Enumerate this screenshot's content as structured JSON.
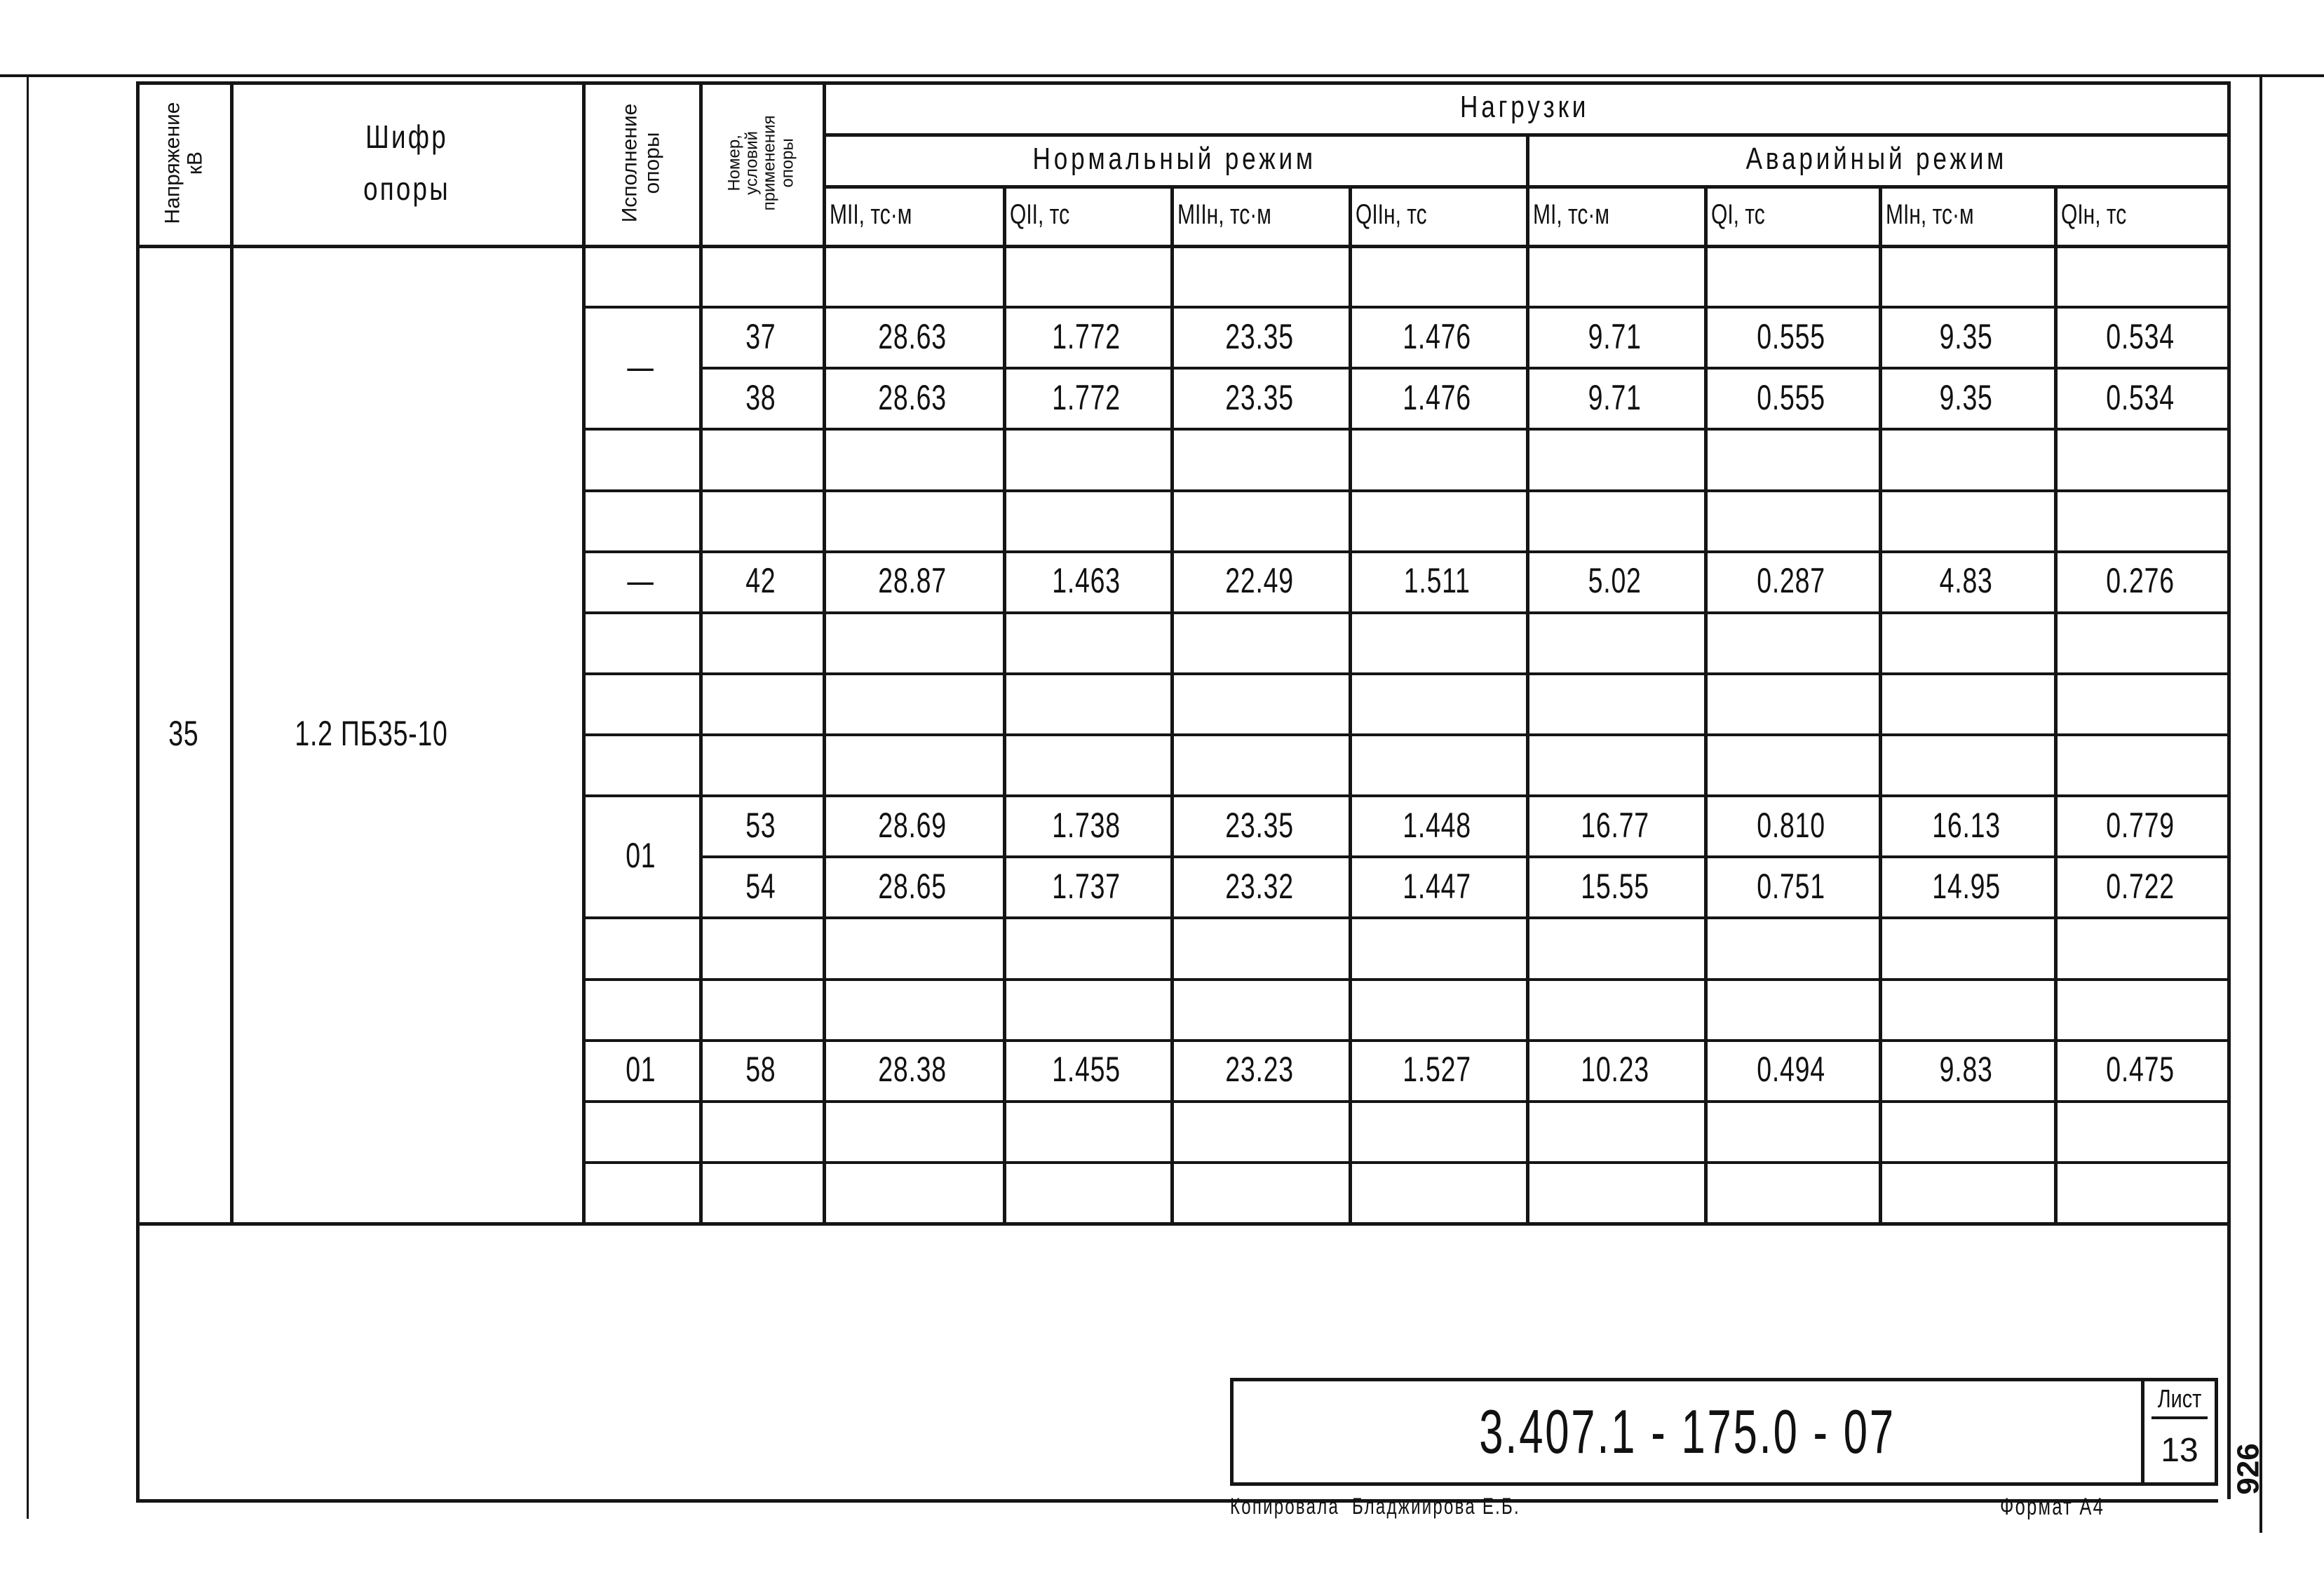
{
  "header": {
    "voltage": "Напряжение кВ",
    "code": "Шифр опоры",
    "execution": "Исполнение опоры",
    "condition_number": "Номер, условий применения опоры",
    "loads": "Нагрузки",
    "normal_mode": "Нормальный режим",
    "emergency_mode": "Аварийный режим",
    "columns": [
      "MII, тс·м",
      "QII, тс",
      "MIIн, тс·м",
      "QIIн, тс",
      "MI, тс·м",
      "QI, тс",
      "MIн, тс·м",
      "QIн, тс"
    ]
  },
  "voltage_value": "35",
  "code_value": "1.2 ПБ35-10",
  "rows": [
    {
      "execution": "",
      "number": "",
      "values": [
        "",
        "",
        "",
        "",
        "",
        "",
        "",
        ""
      ]
    },
    {
      "execution": "—",
      "number": "37",
      "values": [
        "28.63",
        "1.772",
        "23.35",
        "1.476",
        "9.71",
        "0.555",
        "9.35",
        "0.534"
      ]
    },
    {
      "execution": "—",
      "number": "38",
      "values": [
        "28.63",
        "1.772",
        "23.35",
        "1.476",
        "9.71",
        "0.555",
        "9.35",
        "0.534"
      ]
    },
    {
      "execution": "",
      "number": "",
      "values": [
        "",
        "",
        "",
        "",
        "",
        "",
        "",
        ""
      ]
    },
    {
      "execution": "",
      "number": "",
      "values": [
        "",
        "",
        "",
        "",
        "",
        "",
        "",
        ""
      ]
    },
    {
      "execution": "—",
      "number": "42",
      "values": [
        "28.87",
        "1.463",
        "22.49",
        "1.511",
        "5.02",
        "0.287",
        "4.83",
        "0.276"
      ]
    },
    {
      "execution": "",
      "number": "",
      "values": [
        "",
        "",
        "",
        "",
        "",
        "",
        "",
        ""
      ]
    },
    {
      "execution": "",
      "number": "",
      "values": [
        "",
        "",
        "",
        "",
        "",
        "",
        "",
        ""
      ]
    },
    {
      "execution": "",
      "number": "",
      "values": [
        "",
        "",
        "",
        "",
        "",
        "",
        "",
        ""
      ]
    },
    {
      "execution": "01",
      "number": "53",
      "values": [
        "28.69",
        "1.738",
        "23.35",
        "1.448",
        "16.77",
        "0.810",
        "16.13",
        "0.779"
      ]
    },
    {
      "execution": "01",
      "number": "54",
      "values": [
        "28.65",
        "1.737",
        "23.32",
        "1.447",
        "15.55",
        "0.751",
        "14.95",
        "0.722"
      ]
    },
    {
      "execution": "",
      "number": "",
      "values": [
        "",
        "",
        "",
        "",
        "",
        "",
        "",
        ""
      ]
    },
    {
      "execution": "",
      "number": "",
      "values": [
        "",
        "",
        "",
        "",
        "",
        "",
        "",
        ""
      ]
    },
    {
      "execution": "01",
      "number": "58",
      "values": [
        "28.38",
        "1.455",
        "23.23",
        "1.527",
        "10.23",
        "0.494",
        "9.83",
        "0.475"
      ]
    },
    {
      "execution": "",
      "number": "",
      "values": [
        "",
        "",
        "",
        "",
        "",
        "",
        "",
        ""
      ]
    },
    {
      "execution": "",
      "number": "",
      "values": [
        "",
        "",
        "",
        "",
        "",
        "",
        "",
        ""
      ]
    }
  ],
  "title_block": {
    "document_code": "3.407.1 - 175.0 - 07",
    "sheet_label": "Лист",
    "sheet_number": "13",
    "copied_by": "Копировала  Бладжиирова Е.Б.",
    "format": "Формат А4",
    "side_number": "926"
  }
}
